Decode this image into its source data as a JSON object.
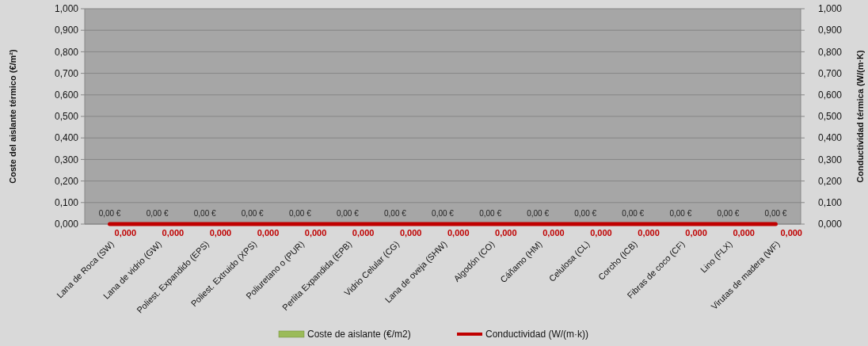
{
  "chart_data": {
    "type": "bar",
    "ylabel": "Coste del aislante térmico (€/m²)",
    "y2label": "Conductividad térmica (W/(m·K)",
    "categories": [
      "Lana de Roca (SW)",
      "Lana de vidrio (GW)",
      "Poliest. Expandido (EPS)",
      "Poliest. Extruido (XPS)",
      "Poliuretano o (PUR)",
      "Perlita Expandida (EPB)",
      "Vidrio Celular (CG)",
      "Lana de oveja (SHW)",
      "Algodón (CO)",
      "Cáñamo (HM)",
      "Celulosa (CL)",
      "Corcho (ICB)",
      "Fibras de coco (CF)",
      "Lino (FLX)",
      "Virutas de madera (WF)"
    ],
    "series": [
      {
        "name": "Coste de aislante (€/m2)",
        "type": "bar",
        "color": "#9bbb59",
        "values": [
          0,
          0,
          0,
          0,
          0,
          0,
          0,
          0,
          0,
          0,
          0,
          0,
          0,
          0,
          0
        ],
        "value_labels": [
          "0,00 €",
          "0,00 €",
          "0,00 €",
          "0,00 €",
          "0,00 €",
          "0,00 €",
          "0,00 €",
          "0,00 €",
          "0,00 €",
          "0,00 €",
          "0,00 €",
          "0,00 €",
          "0,00 €",
          "0,00 €",
          "0,00 €"
        ]
      },
      {
        "name": "Conductividad (W/(m·k))",
        "type": "line",
        "axis": "y2",
        "color": "#c00000",
        "values": [
          0,
          0,
          0,
          0,
          0,
          0,
          0,
          0,
          0,
          0,
          0,
          0,
          0,
          0,
          0
        ],
        "value_labels": [
          "0,000",
          "0,000",
          "0,000",
          "0,000",
          "0,000",
          "0,000",
          "0,000",
          "0,000",
          "0,000",
          "0,000",
          "0,000",
          "0,000",
          "0,000",
          "0,000",
          "0,000"
        ]
      }
    ],
    "ylim": [
      0,
      1
    ],
    "yticks": [
      {
        "value": 0,
        "label": "0,000"
      },
      {
        "value": 0.1,
        "label": "0,100"
      },
      {
        "value": 0.2,
        "label": "0,200"
      },
      {
        "value": 0.3,
        "label": "0,300"
      },
      {
        "value": 0.4,
        "label": "0,400"
      },
      {
        "value": 0.5,
        "label": "0,500"
      },
      {
        "value": 0.6,
        "label": "0,600"
      },
      {
        "value": 0.7,
        "label": "0,700"
      },
      {
        "value": 0.8,
        "label": "0,800"
      },
      {
        "value": 0.9,
        "label": "0,900"
      },
      {
        "value": 1,
        "label": "1,000"
      }
    ],
    "y2lim": [
      0,
      1
    ],
    "y2ticks": [
      {
        "value": 0,
        "label": "0,000"
      },
      {
        "value": 0.1,
        "label": "0,100"
      },
      {
        "value": 0.2,
        "label": "0,200"
      },
      {
        "value": 0.3,
        "label": "0,300"
      },
      {
        "value": 0.4,
        "label": "0,400"
      },
      {
        "value": 0.5,
        "label": "0,500"
      },
      {
        "value": 0.6,
        "label": "0,600"
      },
      {
        "value": 0.7,
        "label": "0,700"
      },
      {
        "value": 0.8,
        "label": "0,800"
      },
      {
        "value": 0.9,
        "label": "0,900"
      },
      {
        "value": 1,
        "label": "1,000"
      }
    ],
    "grid": "y",
    "legend": "bottom"
  }
}
